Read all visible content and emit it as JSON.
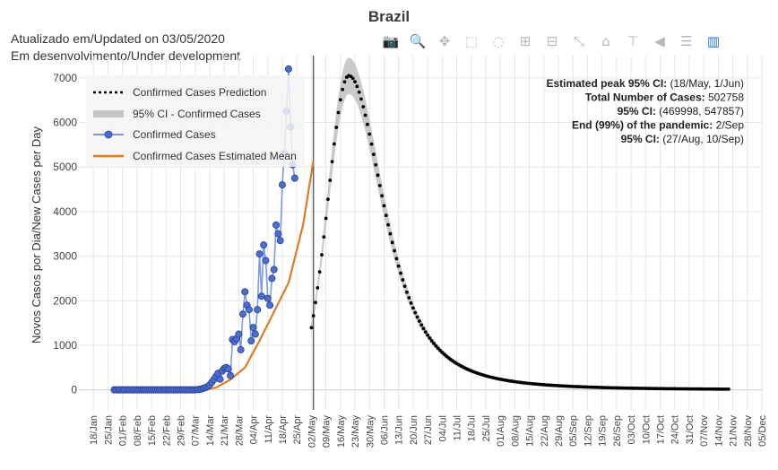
{
  "title": "Brazil",
  "header": {
    "updated": "Atualizado em/Updated on 03/05/2020",
    "dev": "Em desenvolvimento/Under development"
  },
  "stats": [
    {
      "label": "Estimated peak 95% CI:",
      "value": "(18/May, 1/Jun)"
    },
    {
      "label": "Total Number of Cases:",
      "value": "502758"
    },
    {
      "label": "95% CI:",
      "value": "(469998, 547857)"
    },
    {
      "label": "End (99%) of the pandemic:",
      "value": "2/Sep"
    },
    {
      "label": "95% CI:",
      "value": "(27/Aug, 10/Sep)"
    }
  ],
  "toolbar": [
    {
      "name": "camera-icon",
      "glyph": "📷"
    },
    {
      "name": "zoom-icon",
      "glyph": "🔍"
    },
    {
      "name": "pan-icon",
      "glyph": "✥"
    },
    {
      "name": "box-select-icon",
      "glyph": "⬚"
    },
    {
      "name": "lasso-select-icon",
      "glyph": "◌"
    },
    {
      "name": "zoom-in-icon",
      "glyph": "⊞"
    },
    {
      "name": "zoom-out-icon",
      "glyph": "⊟"
    },
    {
      "name": "autoscale-icon",
      "glyph": "⤡"
    },
    {
      "name": "reset-axes-icon",
      "glyph": "⌂"
    },
    {
      "name": "spike-lines-icon",
      "glyph": "⊤"
    },
    {
      "name": "hover-closest-icon",
      "glyph": "◀"
    },
    {
      "name": "hover-compare-icon",
      "glyph": "☰"
    },
    {
      "name": "plotly-logo-icon",
      "glyph": "▥"
    }
  ],
  "colors": {
    "prediction": "#000000",
    "ci": "#c4c4c4",
    "confirmed": "#4a6fd4",
    "confirmed_line": "#7b9be6",
    "mean": "#e07b22",
    "grid": "#e6e6e6",
    "vline": "#444444"
  },
  "chart_data": {
    "type": "line",
    "title": "Brazil",
    "ylabel": "Novos Casos por Dia/New Cases per Day",
    "xlabel": "",
    "x_axis": "date",
    "xlim": [
      "2020-01-11",
      "2020-12-05"
    ],
    "ylim": [
      -450,
      7500
    ],
    "yticks": [
      0,
      1000,
      2000,
      3000,
      4000,
      5000,
      6000,
      7000
    ],
    "xtick_labels": [
      "18/Jan",
      "25/Jan",
      "01/Feb",
      "08/Feb",
      "15/Feb",
      "22/Feb",
      "29/Feb",
      "07/Mar",
      "14/Mar",
      "21/Mar",
      "28/Mar",
      "04/Apr",
      "11/Apr",
      "18/Apr",
      "25/Apr",
      "02/May",
      "09/May",
      "16/May",
      "23/May",
      "30/May",
      "06/Jun",
      "13/Jun",
      "20/Jun",
      "27/Jun",
      "04/Jul",
      "11/Jul",
      "18/Jul",
      "25/Jul",
      "01/Aug",
      "08/Aug",
      "15/Aug",
      "22/Aug",
      "29/Aug",
      "05/Sep",
      "12/Sep",
      "19/Sep",
      "26/Sep",
      "03/Oct",
      "10/Oct",
      "17/Oct",
      "24/Oct",
      "31/Oct",
      "07/Nov",
      "14/Nov",
      "21/Nov",
      "28/Nov",
      "05/Dec"
    ],
    "xtick_dates": [
      "2020-01-18",
      "2020-01-25",
      "2020-02-01",
      "2020-02-08",
      "2020-02-15",
      "2020-02-22",
      "2020-02-29",
      "2020-03-07",
      "2020-03-14",
      "2020-03-21",
      "2020-03-28",
      "2020-04-04",
      "2020-04-11",
      "2020-04-18",
      "2020-04-25",
      "2020-05-02",
      "2020-05-09",
      "2020-05-16",
      "2020-05-23",
      "2020-05-30",
      "2020-06-06",
      "2020-06-13",
      "2020-06-20",
      "2020-06-27",
      "2020-07-04",
      "2020-07-11",
      "2020-07-18",
      "2020-07-25",
      "2020-08-01",
      "2020-08-08",
      "2020-08-15",
      "2020-08-22",
      "2020-08-29",
      "2020-09-05",
      "2020-09-12",
      "2020-09-19",
      "2020-09-26",
      "2020-10-03",
      "2020-10-10",
      "2020-10-17",
      "2020-10-24",
      "2020-10-31",
      "2020-11-07",
      "2020-11-14",
      "2020-11-21",
      "2020-11-28",
      "2020-12-05"
    ],
    "vline_date": "2020-05-03",
    "legend_position": "top-left",
    "grid": true,
    "series": [
      {
        "name": "Confirmed Cases Prediction",
        "kind": "prediction",
        "start": "2020-05-02",
        "end": "2020-11-19",
        "curve": {
          "peak_date": "2020-05-20",
          "peak_value": 7050,
          "rise_days": 10,
          "decay_days": 27
        }
      },
      {
        "name": "95% CI -  Confirmed Cases",
        "kind": "ci",
        "spread": 0.055
      },
      {
        "name": "Confirmed Cases",
        "kind": "observed",
        "start": "2020-01-28",
        "values": [
          0,
          0,
          0,
          0,
          0,
          0,
          0,
          0,
          0,
          0,
          0,
          0,
          0,
          0,
          0,
          0,
          0,
          0,
          0,
          0,
          0,
          0,
          0,
          0,
          0,
          0,
          0,
          0,
          0,
          0,
          0,
          0,
          0,
          0,
          0,
          0,
          0,
          0,
          0,
          0,
          5,
          10,
          20,
          35,
          50,
          70,
          110,
          170,
          230,
          300,
          370,
          240,
          420,
          480,
          500,
          470,
          320,
          1130,
          1080,
          1150,
          1250,
          900,
          1700,
          2200,
          1900,
          1800,
          1100,
          1400,
          1250,
          1800,
          3050,
          2100,
          3250,
          2900,
          2050,
          1900,
          2500,
          2700,
          3700,
          3500,
          3350,
          4600,
          5300,
          6250,
          7200,
          5900,
          5050,
          4750
        ]
      },
      {
        "name": "Confirmed Cases Estimated Mean",
        "kind": "mean",
        "points": [
          [
            "2020-03-10",
            0
          ],
          [
            "2020-03-17",
            50
          ],
          [
            "2020-03-24",
            230
          ],
          [
            "2020-03-31",
            500
          ],
          [
            "2020-04-07",
            1100
          ],
          [
            "2020-04-14",
            1750
          ],
          [
            "2020-04-21",
            2400
          ],
          [
            "2020-04-28",
            3700
          ],
          [
            "2020-05-03",
            5150
          ]
        ]
      }
    ]
  }
}
